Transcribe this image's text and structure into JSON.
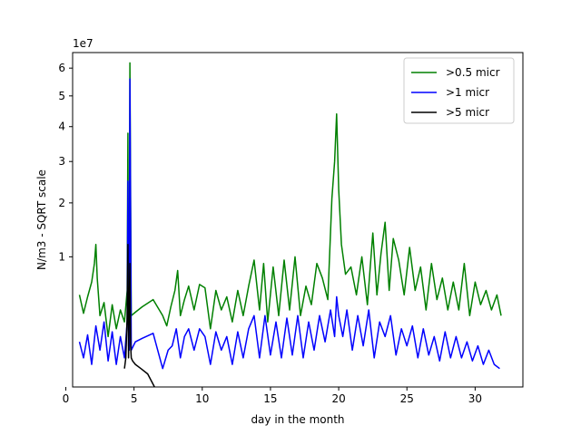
{
  "chart_data": {
    "type": "line",
    "xlabel": "day in the month",
    "ylabel": "N/m3 - SQRT scale",
    "y_scale": "sqrt",
    "y_multiplier_label": "1e7",
    "xlim": [
      0.5,
      33.5
    ],
    "ylim": [
      0.0,
      6.6
    ],
    "x_ticks": [
      0,
      5,
      10,
      15,
      20,
      25,
      30
    ],
    "y_ticks": [
      1,
      2,
      3,
      4,
      5,
      6
    ],
    "legend_position": "top-right",
    "series": [
      {
        "name": ">0.5 micr",
        "color": "#008000",
        "x": [
          1.0,
          1.3,
          1.6,
          1.9,
          2.1,
          2.2,
          2.3,
          2.5,
          2.8,
          3.1,
          3.4,
          3.7,
          4.0,
          4.3,
          4.5,
          4.55,
          4.6,
          4.65,
          4.7,
          4.8,
          5.1,
          5.6,
          6.4,
          7.1,
          7.4,
          7.7,
          8.0,
          8.2,
          8.4,
          8.7,
          9.0,
          9.4,
          9.8,
          10.2,
          10.6,
          11.0,
          11.4,
          11.8,
          12.2,
          12.6,
          13.0,
          13.4,
          13.8,
          14.2,
          14.5,
          14.8,
          15.2,
          15.6,
          16.0,
          16.4,
          16.8,
          17.2,
          17.6,
          18.0,
          18.4,
          18.8,
          19.2,
          19.5,
          19.7,
          19.85,
          20.0,
          20.2,
          20.5,
          20.9,
          21.3,
          21.7,
          22.1,
          22.5,
          22.8,
          23.1,
          23.4,
          23.7,
          24.0,
          24.4,
          24.8,
          25.2,
          25.6,
          26.0,
          26.4,
          26.8,
          27.2,
          27.6,
          28.0,
          28.4,
          28.8,
          29.2,
          29.6,
          30.0,
          30.4,
          30.8,
          31.2,
          31.6,
          31.9
        ],
        "values": [
          0.5,
          0.32,
          0.48,
          0.65,
          0.9,
          1.2,
          0.7,
          0.3,
          0.42,
          0.15,
          0.4,
          0.2,
          0.35,
          0.25,
          0.55,
          3.8,
          0.3,
          0.22,
          6.2,
          0.3,
          0.33,
          0.38,
          0.45,
          0.3,
          0.22,
          0.38,
          0.55,
          0.8,
          0.3,
          0.45,
          0.6,
          0.35,
          0.62,
          0.58,
          0.2,
          0.55,
          0.35,
          0.48,
          0.25,
          0.55,
          0.3,
          0.6,
          0.95,
          0.35,
          0.9,
          0.25,
          0.85,
          0.3,
          0.95,
          0.35,
          1.0,
          0.3,
          0.6,
          0.4,
          0.9,
          0.7,
          0.45,
          2.1,
          3.0,
          4.4,
          2.3,
          1.2,
          0.75,
          0.85,
          0.5,
          1.0,
          0.4,
          1.4,
          0.5,
          1.05,
          1.6,
          0.55,
          1.3,
          0.95,
          0.5,
          1.15,
          0.55,
          0.85,
          0.35,
          0.9,
          0.45,
          0.7,
          0.35,
          0.65,
          0.35,
          0.9,
          0.3,
          0.65,
          0.4,
          0.55,
          0.35,
          0.5,
          0.3
        ]
      },
      {
        "name": ">1 micr",
        "color": "#0000ff",
        "x": [
          1.0,
          1.3,
          1.6,
          1.9,
          2.2,
          2.5,
          2.8,
          3.1,
          3.4,
          3.7,
          4.0,
          4.3,
          4.5,
          4.55,
          4.6,
          4.65,
          4.7,
          4.8,
          5.1,
          5.6,
          6.4,
          7.1,
          7.5,
          7.8,
          8.1,
          8.4,
          8.7,
          9.0,
          9.4,
          9.8,
          10.2,
          10.6,
          11.0,
          11.4,
          11.8,
          12.2,
          12.6,
          13.0,
          13.4,
          13.8,
          14.2,
          14.6,
          15.0,
          15.4,
          15.8,
          16.2,
          16.6,
          17.0,
          17.4,
          17.8,
          18.2,
          18.6,
          19.0,
          19.4,
          19.7,
          19.85,
          20.0,
          20.3,
          20.6,
          21.0,
          21.4,
          21.8,
          22.2,
          22.6,
          23.0,
          23.4,
          23.8,
          24.2,
          24.6,
          25.0,
          25.4,
          25.8,
          26.2,
          26.6,
          27.0,
          27.4,
          27.8,
          28.2,
          28.6,
          29.0,
          29.4,
          29.8,
          30.2,
          30.6,
          31.0,
          31.4,
          31.8
        ],
        "values": [
          0.12,
          0.05,
          0.16,
          0.03,
          0.22,
          0.08,
          0.25,
          0.04,
          0.18,
          0.03,
          0.15,
          0.05,
          0.25,
          2.5,
          0.1,
          0.08,
          5.6,
          0.08,
          0.12,
          0.14,
          0.17,
          0.02,
          0.08,
          0.1,
          0.2,
          0.05,
          0.15,
          0.2,
          0.08,
          0.2,
          0.15,
          0.03,
          0.18,
          0.08,
          0.15,
          0.03,
          0.18,
          0.05,
          0.2,
          0.3,
          0.05,
          0.3,
          0.06,
          0.25,
          0.05,
          0.28,
          0.06,
          0.3,
          0.05,
          0.25,
          0.08,
          0.3,
          0.12,
          0.35,
          0.15,
          0.48,
          0.3,
          0.15,
          0.35,
          0.08,
          0.3,
          0.1,
          0.35,
          0.05,
          0.25,
          0.15,
          0.3,
          0.06,
          0.2,
          0.1,
          0.22,
          0.05,
          0.2,
          0.06,
          0.15,
          0.04,
          0.18,
          0.05,
          0.15,
          0.05,
          0.12,
          0.04,
          0.1,
          0.03,
          0.08,
          0.03,
          0.02
        ]
      },
      {
        "name": ">5 micr",
        "color": "#000000",
        "x": [
          4.3,
          4.4,
          4.5,
          4.55,
          4.6,
          4.65,
          4.7,
          4.75,
          4.8,
          4.9,
          5.1,
          5.5,
          6.0,
          6.5
        ],
        "values": [
          0.02,
          0.05,
          0.3,
          1.2,
          0.05,
          0.4,
          0.9,
          0.1,
          0.05,
          0.04,
          0.03,
          0.02,
          0.01,
          0.0
        ]
      }
    ]
  }
}
